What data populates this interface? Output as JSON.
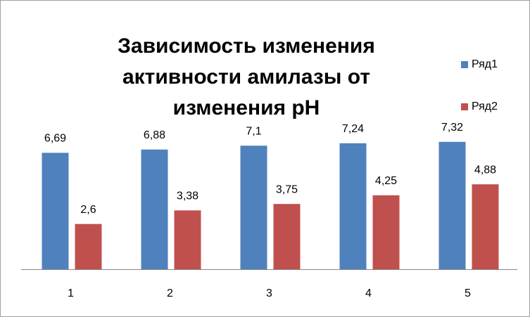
{
  "chart_data": {
    "type": "bar",
    "title": "Зависимость изменения активности амилазы от изменения pH",
    "categories": [
      "1",
      "2",
      "3",
      "4",
      "5"
    ],
    "series": [
      {
        "name": "Ряд1",
        "color": "#4f81bd",
        "values": [
          6.69,
          6.88,
          7.1,
          7.24,
          7.32
        ],
        "value_labels": [
          "6,69",
          "6,88",
          "7,1",
          "7,24",
          "7,32"
        ]
      },
      {
        "name": "Ряд2",
        "color": "#c0504d",
        "values": [
          2.6,
          3.38,
          3.75,
          4.25,
          4.88
        ],
        "value_labels": [
          "2,6",
          "3,38",
          "3,75",
          "4,25",
          "4,88"
        ]
      }
    ],
    "ylim": [
      0,
      8
    ],
    "legend": "right"
  }
}
